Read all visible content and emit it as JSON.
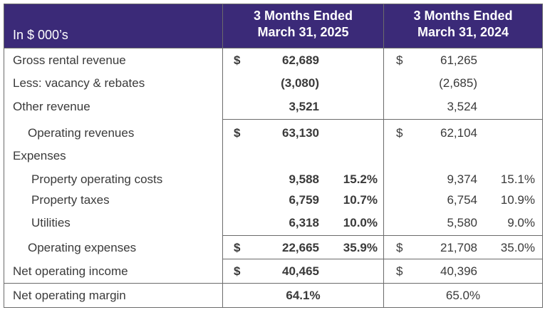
{
  "header": {
    "unit_label": "In $ 000’s",
    "col_2025_line1": "3 Months Ended",
    "col_2025_line2": "March 31, 2025",
    "col_2024_line1": "3 Months Ended",
    "col_2024_line2": "March 31, 2024"
  },
  "rows": [
    {
      "label": "Gross rental revenue",
      "dollar_2025": "$",
      "value_2025": "62,689",
      "pct_2025": "",
      "dollar_2024": "$",
      "value_2024": "61,265",
      "pct_2024": ""
    },
    {
      "label": "Less: vacancy & rebates",
      "dollar_2025": "",
      "value_2025": "(3,080)",
      "pct_2025": "",
      "dollar_2024": "",
      "value_2024": "(2,685)",
      "pct_2024": ""
    },
    {
      "label": "Other revenue",
      "dollar_2025": "",
      "value_2025": "3,521",
      "pct_2025": "",
      "dollar_2024": "",
      "value_2024": "3,524",
      "pct_2024": ""
    },
    {
      "label": "Operating revenues",
      "dollar_2025": "$",
      "value_2025": "63,130",
      "pct_2025": "",
      "dollar_2024": "$",
      "value_2024": "62,104",
      "pct_2024": ""
    },
    {
      "label": "Expenses",
      "dollar_2025": "",
      "value_2025": "",
      "pct_2025": "",
      "dollar_2024": "",
      "value_2024": "",
      "pct_2024": ""
    },
    {
      "label": "Property operating costs",
      "dollar_2025": "",
      "value_2025": "9,588",
      "pct_2025": "15.2%",
      "dollar_2024": "",
      "value_2024": "9,374",
      "pct_2024": "15.1%"
    },
    {
      "label": "Property taxes",
      "dollar_2025": "",
      "value_2025": "6,759",
      "pct_2025": "10.7%",
      "dollar_2024": "",
      "value_2024": "6,754",
      "pct_2024": "10.9%"
    },
    {
      "label": "Utilities",
      "dollar_2025": "",
      "value_2025": "6,318",
      "pct_2025": "10.0%",
      "dollar_2024": "",
      "value_2024": "5,580",
      "pct_2024": "9.0%"
    },
    {
      "label": "Operating expenses",
      "dollar_2025": "$",
      "value_2025": "22,665",
      "pct_2025": "35.9%",
      "dollar_2024": "$",
      "value_2024": "21,708",
      "pct_2024": "35.0%"
    },
    {
      "label": "Net operating income",
      "dollar_2025": "$",
      "value_2025": "40,465",
      "pct_2025": "",
      "dollar_2024": "$",
      "value_2024": "40,396",
      "pct_2024": ""
    }
  ],
  "margin_row": {
    "label": "Net operating margin",
    "value_2025": "64.1%",
    "value_2024": "65.0%"
  }
}
